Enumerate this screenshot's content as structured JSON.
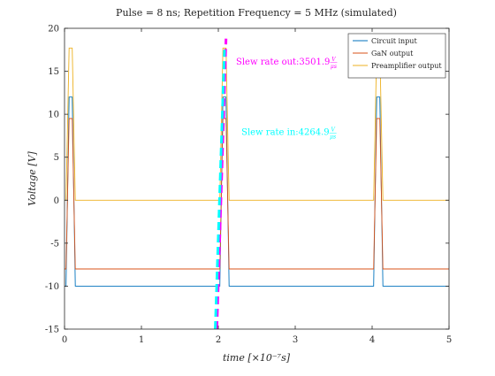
{
  "chart_data": {
    "type": "line",
    "title": "Pulse = 8 ns; Repetition Frequency = 5 MHz (simulated)",
    "xlabel": "time [×10⁻⁷s]",
    "ylabel": "Voltage [V]",
    "xlim": [
      0,
      5
    ],
    "ylim": [
      -15,
      20
    ],
    "xticks": [
      0,
      1,
      2,
      3,
      4,
      5
    ],
    "yticks": [
      -15,
      -10,
      -5,
      0,
      5,
      10,
      15,
      20
    ],
    "grid": false,
    "legend_position": "top-right",
    "series": [
      {
        "name": "Circuit input",
        "color": "#0072BD",
        "x": [
          0,
          0.02,
          0.06,
          0.1,
          0.14,
          1.98,
          2.02,
          2.06,
          2.1,
          2.14,
          3.98,
          4.02,
          4.06,
          4.1,
          4.14,
          5
        ],
        "y": [
          -10,
          -10,
          12,
          12,
          -10,
          -10,
          -10,
          12,
          12,
          -10,
          -10,
          -10,
          12,
          12,
          -10,
          -10
        ]
      },
      {
        "name": "GaN output",
        "color": "#D95319",
        "x": [
          0,
          0.02,
          0.06,
          0.1,
          0.14,
          1.98,
          2.02,
          2.06,
          2.1,
          2.14,
          3.98,
          4.02,
          4.06,
          4.1,
          4.14,
          5
        ],
        "y": [
          -8,
          -8,
          9.5,
          9.5,
          -8,
          -8,
          -8,
          9.5,
          9.5,
          -8,
          -8,
          -8,
          9.5,
          9.5,
          -8,
          -8
        ]
      },
      {
        "name": "Preamplifier output",
        "color": "#EDB120",
        "x": [
          0,
          0.02,
          0.06,
          0.1,
          0.14,
          1.98,
          2.02,
          2.06,
          2.1,
          2.14,
          3.98,
          4.02,
          4.06,
          4.1,
          4.14,
          5
        ],
        "y": [
          0,
          0,
          17.7,
          17.7,
          0,
          0,
          0,
          17.7,
          17.7,
          0,
          0,
          0,
          17.7,
          17.7,
          0,
          0
        ]
      }
    ],
    "slew_lines": [
      {
        "name": "slew-out",
        "color": "#FF00FF",
        "x": [
          1.98,
          2.1
        ],
        "y": [
          -15,
          18.8
        ]
      },
      {
        "name": "slew-in",
        "color": "#00FFFF",
        "x": [
          1.96,
          2.08
        ],
        "y": [
          -15,
          17.5
        ]
      }
    ],
    "annotations": [
      {
        "name": "slew-out",
        "prefix": "Slew rate out:",
        "value": "3501.9",
        "unit_num": "V",
        "unit_den": "μs",
        "color": "#FF00FF",
        "x": 2.23,
        "y": 15.8
      },
      {
        "name": "slew-in",
        "prefix": "Slew rate in:",
        "value": "4264.9",
        "unit_num": "V",
        "unit_den": "μs",
        "color": "#00FFFF",
        "x": 2.3,
        "y": 7.6
      }
    ]
  }
}
